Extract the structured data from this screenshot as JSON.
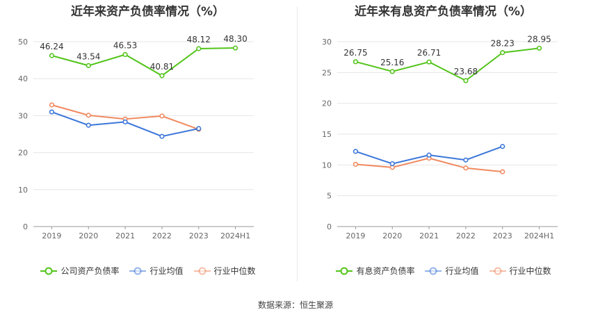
{
  "footer": {
    "source_text": "数据来源：恒生聚源"
  },
  "chart_data": [
    {
      "type": "line",
      "title": "近年来资产负债率情况（%）",
      "categories": [
        "2019",
        "2020",
        "2021",
        "2022",
        "2023",
        "2024H1"
      ],
      "ylim": [
        0,
        50
      ],
      "yticks": [
        0,
        10,
        20,
        30,
        40,
        50
      ],
      "grid": true,
      "legend_position": "bottom",
      "series": [
        {
          "name": "公司资产负债率",
          "color": "#52c41a",
          "values": [
            46.24,
            43.54,
            46.53,
            40.81,
            48.12,
            48.3
          ],
          "show_labels": true
        },
        {
          "name": "行业均值",
          "color": "#3b76d9",
          "values": [
            31.0,
            27.4,
            28.3,
            24.4,
            26.5,
            null
          ],
          "show_labels": false
        },
        {
          "name": "行业中位数",
          "color": "#f08a60",
          "values": [
            32.9,
            30.1,
            29.1,
            29.9,
            26.3,
            null
          ],
          "show_labels": false
        }
      ]
    },
    {
      "type": "line",
      "title": "近年来有息资产负债率情况（%）",
      "categories": [
        "2019",
        "2020",
        "2021",
        "2022",
        "2023",
        "2024H1"
      ],
      "ylim": [
        0,
        30
      ],
      "yticks": [
        0,
        5,
        10,
        15,
        20,
        25,
        30
      ],
      "grid": true,
      "legend_position": "bottom",
      "series": [
        {
          "name": "有息资产负债率",
          "color": "#52c41a",
          "values": [
            26.75,
            25.16,
            26.71,
            23.68,
            28.23,
            28.95
          ],
          "show_labels": true
        },
        {
          "name": "行业均值",
          "color": "#3b76d9",
          "values": [
            12.2,
            10.2,
            11.6,
            10.8,
            13.0,
            null
          ],
          "show_labels": false
        },
        {
          "name": "行业中位数",
          "color": "#f08a60",
          "values": [
            10.1,
            9.6,
            11.1,
            9.5,
            8.9,
            null
          ],
          "show_labels": false
        }
      ]
    }
  ]
}
